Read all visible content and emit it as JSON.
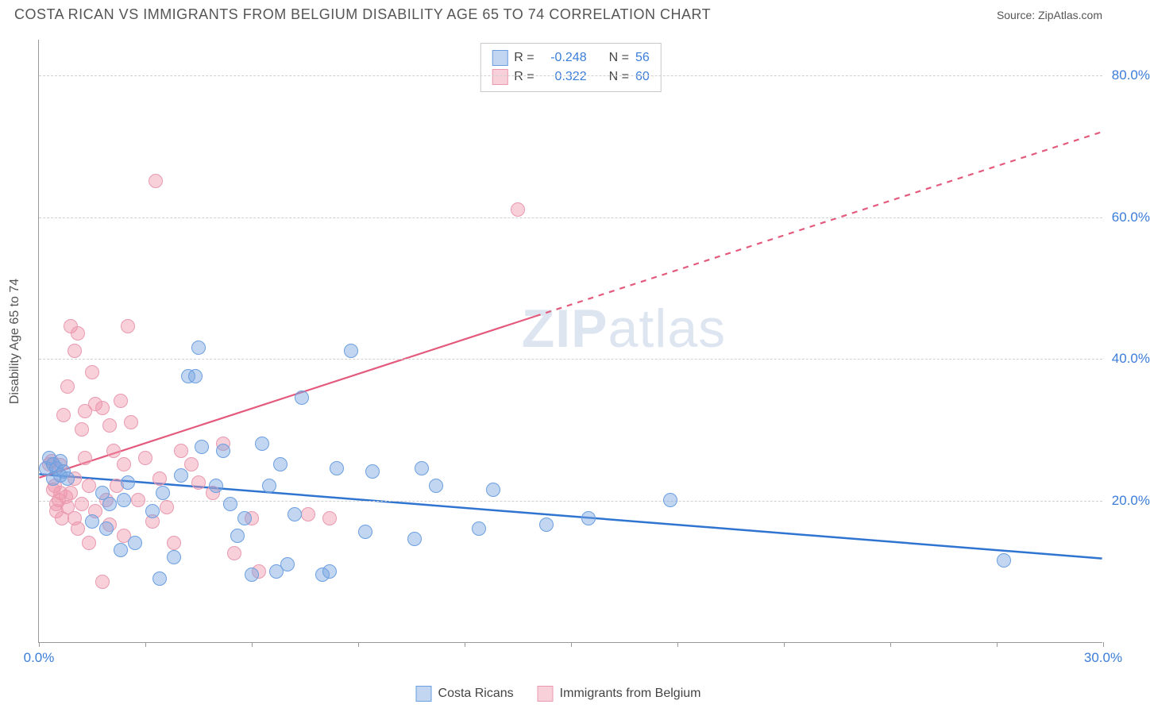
{
  "header": {
    "title": "COSTA RICAN VS IMMIGRANTS FROM BELGIUM DISABILITY AGE 65 TO 74 CORRELATION CHART",
    "source": "Source: ZipAtlas.com"
  },
  "chart": {
    "type": "scatter",
    "watermark": "ZIPatlas",
    "y_axis_label": "Disability Age 65 to 74",
    "background_color": "#ffffff",
    "grid_color": "#d0d0d0",
    "axis_color": "#999999",
    "tick_label_color": "#3b7dd8",
    "tick_fontsize": 17,
    "xlim": [
      0,
      30
    ],
    "ylim": [
      0,
      85
    ],
    "x_ticks": [
      0,
      3,
      6,
      9,
      12,
      15,
      18,
      21,
      24,
      27,
      30
    ],
    "x_tick_labels": {
      "0": "0.0%",
      "30": "30.0%"
    },
    "y_gridlines": [
      20,
      40,
      60,
      80
    ],
    "y_tick_labels": {
      "20": "20.0%",
      "40": "40.0%",
      "60": "60.0%",
      "80": "80.0%"
    },
    "series": [
      {
        "name": "Costa Ricans",
        "fill_color": "rgba(120,165,225,0.45)",
        "stroke_color": "#6b9fe0",
        "marker_radius": 9,
        "trend": {
          "y_at_x0": 23.7,
          "y_at_xmax": 11.8,
          "stroke": "#2f74d0",
          "stroke_width": 2.5,
          "dash_from_x": 30
        },
        "R": "-0.248",
        "N": "56",
        "points": [
          [
            0.2,
            24.5
          ],
          [
            0.3,
            26
          ],
          [
            0.4,
            23
          ],
          [
            0.4,
            25
          ],
          [
            0.5,
            24.5
          ],
          [
            0.6,
            23.5
          ],
          [
            0.6,
            25.5
          ],
          [
            0.7,
            24
          ],
          [
            0.8,
            23
          ],
          [
            1.5,
            17
          ],
          [
            1.8,
            21
          ],
          [
            1.9,
            16
          ],
          [
            2.0,
            19.5
          ],
          [
            2.3,
            13
          ],
          [
            2.4,
            20
          ],
          [
            2.5,
            22.5
          ],
          [
            2.7,
            14
          ],
          [
            3.2,
            18.5
          ],
          [
            3.4,
            9
          ],
          [
            3.5,
            21
          ],
          [
            3.8,
            12
          ],
          [
            4.0,
            23.5
          ],
          [
            4.2,
            37.5
          ],
          [
            4.4,
            37.5
          ],
          [
            4.5,
            41.5
          ],
          [
            4.6,
            27.5
          ],
          [
            5.0,
            22
          ],
          [
            5.2,
            27
          ],
          [
            5.4,
            19.5
          ],
          [
            5.6,
            15
          ],
          [
            5.8,
            17.5
          ],
          [
            6.0,
            9.5
          ],
          [
            6.3,
            28
          ],
          [
            6.5,
            22
          ],
          [
            6.7,
            10
          ],
          [
            6.8,
            25
          ],
          [
            7.0,
            11
          ],
          [
            7.2,
            18
          ],
          [
            7.4,
            34.5
          ],
          [
            8.0,
            9.5
          ],
          [
            8.2,
            10
          ],
          [
            8.4,
            24.5
          ],
          [
            8.8,
            41
          ],
          [
            9.2,
            15.5
          ],
          [
            9.4,
            24
          ],
          [
            10.6,
            14.5
          ],
          [
            10.8,
            24.5
          ],
          [
            11.2,
            22
          ],
          [
            12.4,
            16
          ],
          [
            12.8,
            21.5
          ],
          [
            14.3,
            16.5
          ],
          [
            15.5,
            17.5
          ],
          [
            17.8,
            20
          ],
          [
            27.2,
            11.5
          ]
        ]
      },
      {
        "name": "Immigrants from Belgium",
        "fill_color": "rgba(240,150,170,0.45)",
        "stroke_color": "#e99ab0",
        "marker_radius": 9,
        "trend": {
          "y_at_x0": 23.2,
          "y_at_xmax": 72,
          "stroke": "#e45a7d",
          "stroke_width": 2.2,
          "dash_from_x": 14
        },
        "R": "0.322",
        "N": "60",
        "points": [
          [
            0.3,
            25
          ],
          [
            0.35,
            25.5
          ],
          [
            0.4,
            21.5
          ],
          [
            0.45,
            22
          ],
          [
            0.5,
            18.5
          ],
          [
            0.5,
            19.5
          ],
          [
            0.55,
            20
          ],
          [
            0.6,
            21
          ],
          [
            0.6,
            24.9
          ],
          [
            0.65,
            17.5
          ],
          [
            0.7,
            32
          ],
          [
            0.75,
            20.5
          ],
          [
            0.8,
            19
          ],
          [
            0.8,
            36
          ],
          [
            0.9,
            21
          ],
          [
            0.9,
            44.5
          ],
          [
            1.0,
            17.5
          ],
          [
            1.0,
            23
          ],
          [
            1.0,
            41
          ],
          [
            1.1,
            16
          ],
          [
            1.1,
            43.5
          ],
          [
            1.2,
            19.5
          ],
          [
            1.2,
            30
          ],
          [
            1.3,
            32.5
          ],
          [
            1.3,
            26
          ],
          [
            1.4,
            14
          ],
          [
            1.4,
            22
          ],
          [
            1.5,
            38
          ],
          [
            1.6,
            33.5
          ],
          [
            1.6,
            18.5
          ],
          [
            1.8,
            8.5
          ],
          [
            1.8,
            33
          ],
          [
            1.9,
            20
          ],
          [
            2.0,
            16.5
          ],
          [
            2.0,
            30.5
          ],
          [
            2.1,
            27
          ],
          [
            2.2,
            22
          ],
          [
            2.3,
            34
          ],
          [
            2.4,
            15
          ],
          [
            2.4,
            25
          ],
          [
            2.5,
            44.5
          ],
          [
            2.6,
            31
          ],
          [
            2.8,
            20
          ],
          [
            3.0,
            26
          ],
          [
            3.2,
            17
          ],
          [
            3.3,
            65
          ],
          [
            3.4,
            23
          ],
          [
            3.6,
            19
          ],
          [
            3.8,
            14
          ],
          [
            4.0,
            27
          ],
          [
            4.3,
            25
          ],
          [
            4.5,
            22.5
          ],
          [
            4.9,
            21
          ],
          [
            5.2,
            28
          ],
          [
            5.5,
            12.5
          ],
          [
            6.0,
            17.5
          ],
          [
            6.2,
            10
          ],
          [
            7.6,
            18
          ],
          [
            8.2,
            17.5
          ],
          [
            13.5,
            61
          ]
        ]
      }
    ],
    "legend_top": {
      "border_color": "#c8c8c8",
      "rows": [
        {
          "swatch_fill": "rgba(120,165,225,0.45)",
          "swatch_stroke": "#6b9fe0",
          "r_label": "R =",
          "r_value": "-0.248",
          "n_label": "N =",
          "n_value": "56"
        },
        {
          "swatch_fill": "rgba(240,150,170,0.45)",
          "swatch_stroke": "#e99ab0",
          "r_label": "R =",
          "r_value": "0.322",
          "n_label": "N =",
          "n_value": "60"
        }
      ]
    },
    "legend_bottom": [
      {
        "swatch_fill": "rgba(120,165,225,0.45)",
        "swatch_stroke": "#6b9fe0",
        "label": "Costa Ricans"
      },
      {
        "swatch_fill": "rgba(240,150,170,0.45)",
        "swatch_stroke": "#e99ab0",
        "label": "Immigrants from Belgium"
      }
    ]
  }
}
